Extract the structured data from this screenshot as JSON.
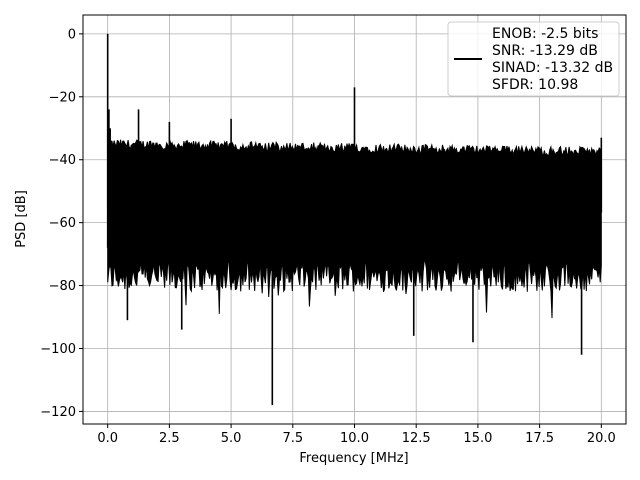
{
  "chart_data": {
    "type": "line",
    "title": "",
    "xlabel": "Frequency [MHz]",
    "ylabel": "PSD [dB]",
    "xlim": [
      -1.0,
      21.0
    ],
    "ylim": [
      -124,
      6
    ],
    "xticks": [
      0.0,
      2.5,
      5.0,
      7.5,
      10.0,
      12.5,
      15.0,
      17.5,
      20.0
    ],
    "xtick_labels": [
      "0.0",
      "2.5",
      "5.0",
      "7.5",
      "10.0",
      "12.5",
      "15.0",
      "17.5",
      "20.0"
    ],
    "yticks": [
      0,
      -20,
      -40,
      -60,
      -80,
      -100,
      -120
    ],
    "ytick_labels": [
      "0",
      "−20",
      "−40",
      "−60",
      "−80",
      "−100",
      "−120"
    ],
    "grid": true,
    "legend_position": "top-right",
    "legend": [
      "ENOB: -2.5 bits",
      "SNR: -13.29 dB",
      "SINAD: -13.32 dB",
      "SFDR: 10.98"
    ],
    "series_color": "#000000",
    "noise_band": {
      "x_start": 0.0,
      "x_end": 20.0,
      "upper_db": -35,
      "lower_db": -76
    },
    "series": [
      {
        "values_note": "",
        "x": [
          0.0,
          0.0,
          0.05,
          0.1,
          0.8,
          1.25,
          1.3,
          2.5,
          3.0,
          5.0,
          5.05,
          6.67,
          10.0,
          12.4,
          14.8,
          19.2,
          20.0
        ],
        "y": [
          -68,
          0,
          -24,
          -30,
          -91,
          -24,
          -40,
          -28,
          -94,
          -27,
          -40,
          -118,
          -17,
          -96,
          -98,
          -102,
          -33
        ]
      }
    ]
  }
}
